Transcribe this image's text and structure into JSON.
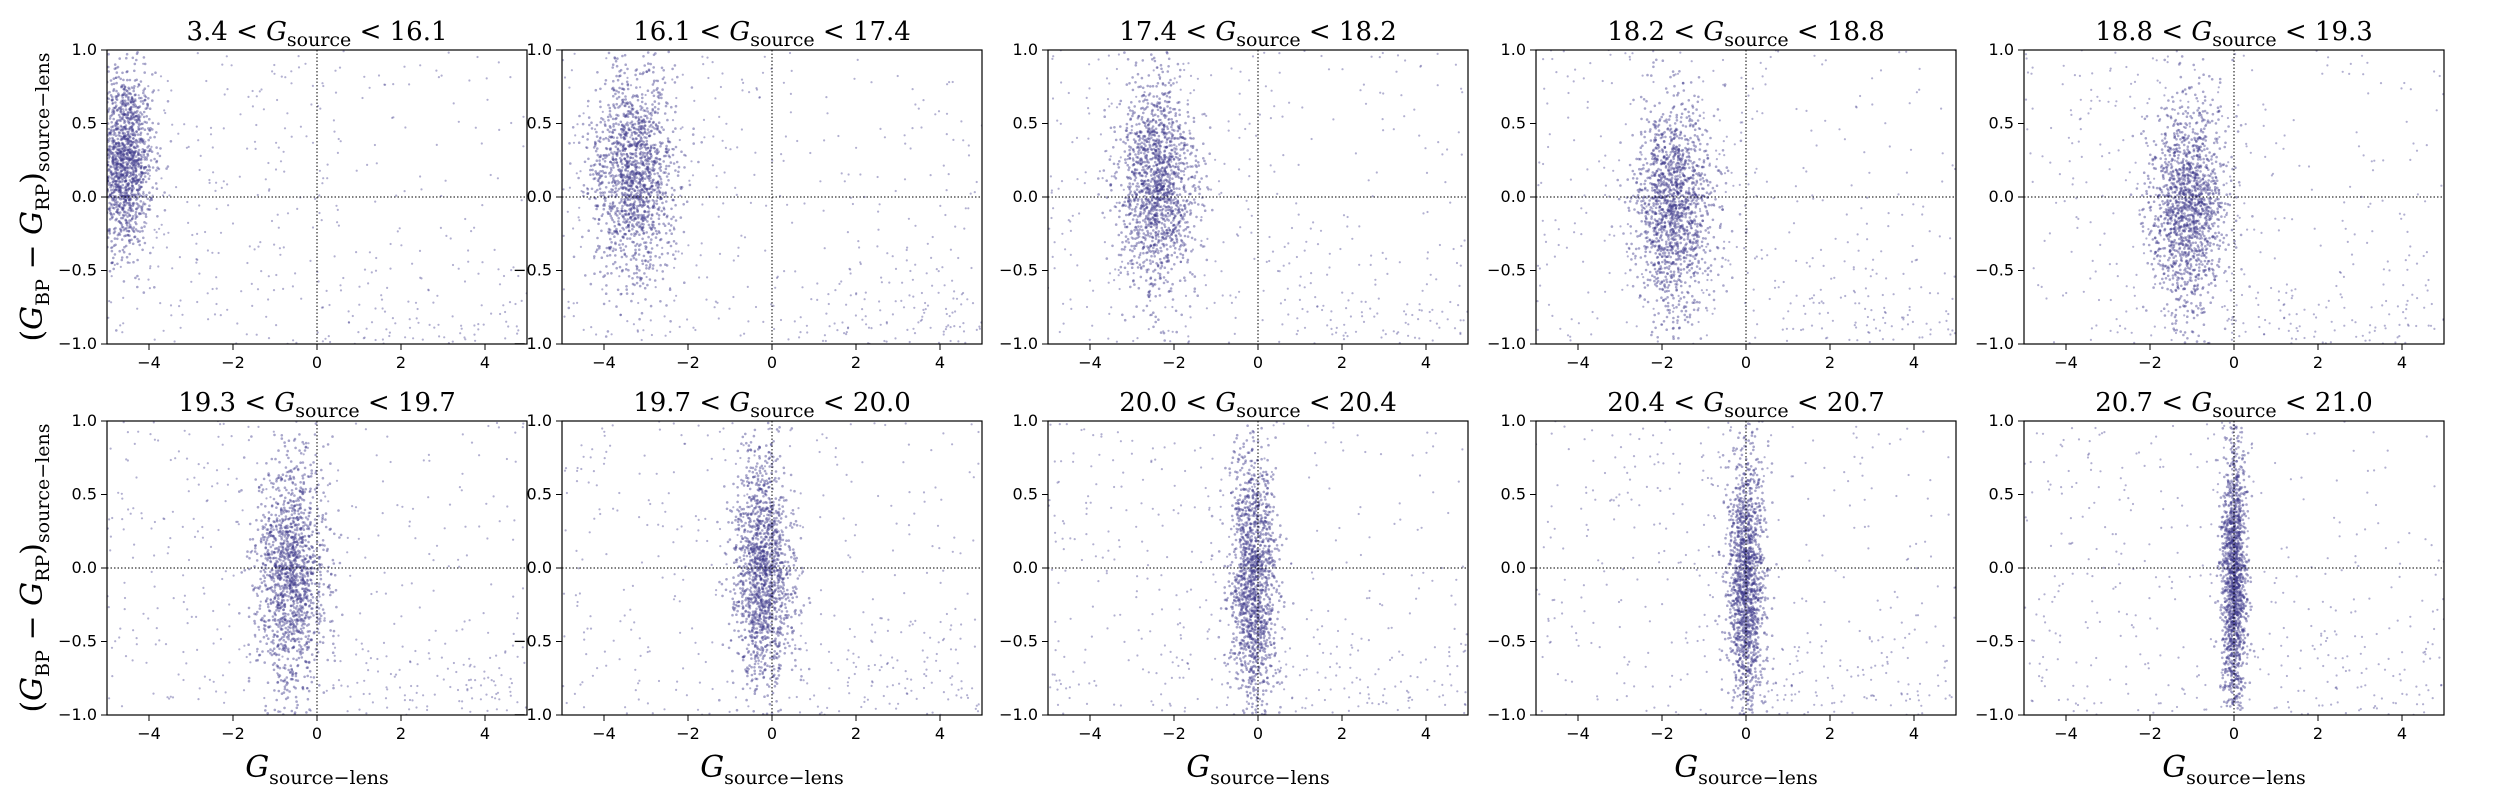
{
  "chart_data": {
    "type": "scatter",
    "xlim": [
      -5,
      5
    ],
    "ylim": [
      -1,
      1
    ],
    "xticks": [
      -4,
      -2,
      0,
      2,
      4
    ],
    "yticks": [
      -1.0,
      -0.5,
      0.0,
      0.5,
      1.0
    ],
    "x_ticklabels": [
      "−4",
      "−2",
      "0",
      "2",
      "4"
    ],
    "y_ticklabels": [
      "−1.0",
      "−0.5",
      "0.0",
      "0.5",
      "1.0"
    ],
    "xlabel": {
      "main": "G",
      "sub": "source−lens"
    },
    "ylabel": {
      "main": "(G",
      "sub1": "BP",
      "mid": " − G",
      "sub2": "RP",
      "close": ")",
      "sub3": "source−lens"
    },
    "reference_lines": {
      "x": 0,
      "y": 0,
      "style": "dotted"
    },
    "point_color": "#3f3a8c",
    "grid": false,
    "legend": "none",
    "panels": [
      {
        "title": {
          "lo": "3.4",
          "hi": "16.1",
          "sub": "source"
        },
        "core": {
          "cx": -4.6,
          "sx": 0.35,
          "cy": 0.25,
          "sy": 0.3
        }
      },
      {
        "title": {
          "lo": "16.1",
          "hi": "17.4",
          "sub": "source"
        },
        "core": {
          "cx": -3.3,
          "sx": 0.5,
          "cy": 0.15,
          "sy": 0.35
        }
      },
      {
        "title": {
          "lo": "17.4",
          "hi": "18.2",
          "sub": "source"
        },
        "core": {
          "cx": -2.4,
          "sx": 0.45,
          "cy": 0.1,
          "sy": 0.35
        }
      },
      {
        "title": {
          "lo": "18.2",
          "hi": "18.8",
          "sub": "source"
        },
        "core": {
          "cx": -1.7,
          "sx": 0.45,
          "cy": -0.05,
          "sy": 0.35
        }
      },
      {
        "title": {
          "lo": "18.8",
          "hi": "19.3",
          "sub": "source"
        },
        "core": {
          "cx": -1.1,
          "sx": 0.45,
          "cy": -0.05,
          "sy": 0.35
        }
      },
      {
        "title": {
          "lo": "19.3",
          "hi": "19.7",
          "sub": "source"
        },
        "core": {
          "cx": -0.6,
          "sx": 0.4,
          "cy": -0.05,
          "sy": 0.4
        }
      },
      {
        "title": {
          "lo": "19.7",
          "hi": "20.0",
          "sub": "source"
        },
        "core": {
          "cx": -0.2,
          "sx": 0.35,
          "cy": -0.05,
          "sy": 0.4
        }
      },
      {
        "title": {
          "lo": "20.0",
          "hi": "20.4",
          "sub": "source"
        },
        "core": {
          "cx": -0.1,
          "sx": 0.28,
          "cy": -0.1,
          "sy": 0.45
        }
      },
      {
        "title": {
          "lo": "20.4",
          "hi": "20.7",
          "sub": "source"
        },
        "core": {
          "cx": 0.0,
          "sx": 0.22,
          "cy": -0.1,
          "sy": 0.45
        }
      },
      {
        "title": {
          "lo": "20.7",
          "hi": "21.0",
          "sub": "source"
        },
        "core": {
          "cx": 0.0,
          "sx": 0.15,
          "cy": -0.1,
          "sy": 0.45
        }
      }
    ]
  }
}
